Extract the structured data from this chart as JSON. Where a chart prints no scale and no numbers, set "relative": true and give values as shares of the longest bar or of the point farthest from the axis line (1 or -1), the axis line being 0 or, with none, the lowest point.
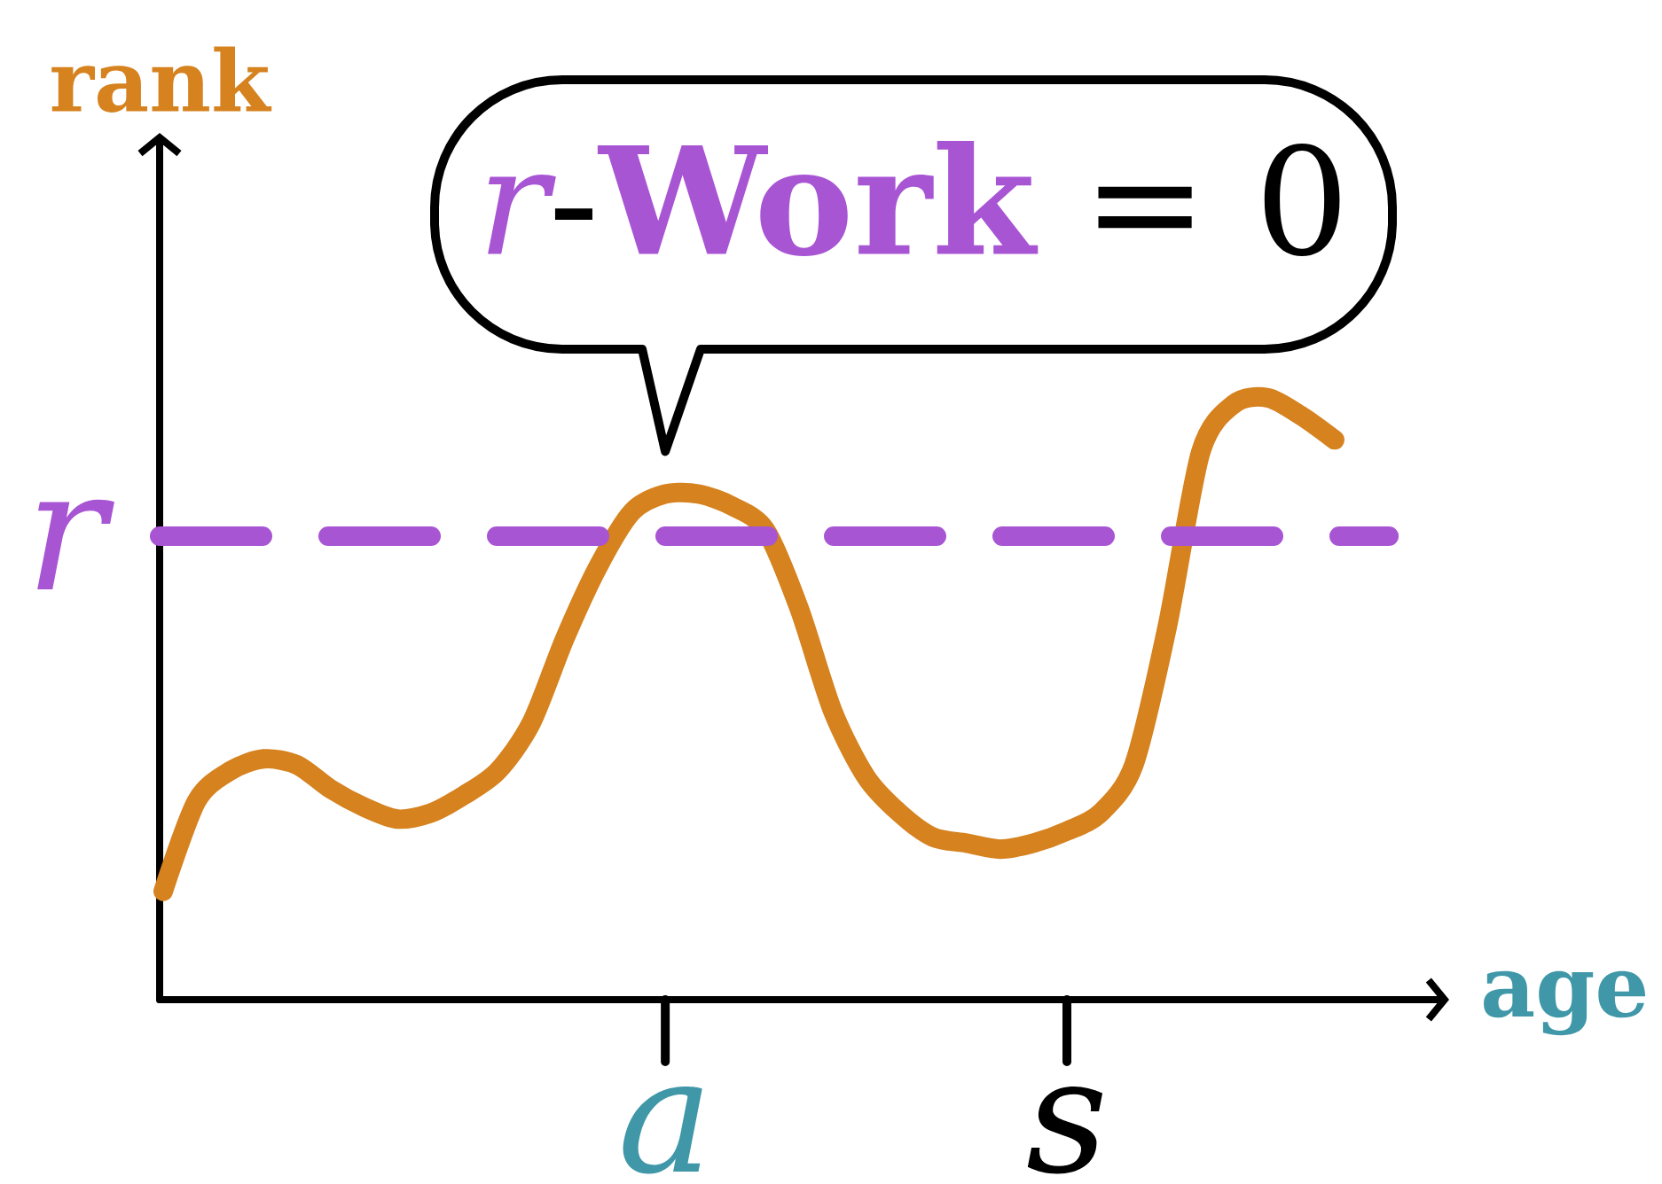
{
  "chart_data": {
    "type": "line",
    "xlabel": "age",
    "ylabel": "rank",
    "relative": true,
    "annotations": [
      {
        "text": "*r*-**Work** = 0",
        "x": "a",
        "y": 0.84
      }
    ],
    "categories": [
      null,
      null,
      null,
      null,
      null,
      null,
      null,
      null,
      null,
      null,
      null,
      null,
      null,
      null,
      null,
      "a",
      null,
      null,
      null,
      null,
      null,
      null,
      null,
      null,
      null,
      null,
      null,
      "s",
      null,
      null,
      null,
      null,
      null,
      null,
      null,
      null
    ],
    "series": [
      {
        "color": "#d5821f",
        "values": [
          0.18,
          0.33,
          0.38,
          0.4,
          0.39,
          0.35,
          0.32,
          0.3,
          0.31,
          0.34,
          0.38,
          0.46,
          0.6,
          0.72,
          0.81,
          0.84,
          0.84,
          0.82,
          0.78,
          0.65,
          0.48,
          0.37,
          0.31,
          0.27,
          0.26,
          0.25,
          0.26,
          0.28,
          0.31,
          0.39,
          0.62,
          0.91,
          0.99,
          1,
          0.97,
          0.93
        ]
      }
    ],
    "ref_lines": [
      {
        "axis": "y",
        "value": 0.77,
        "label": "r",
        "color": "#a855d4",
        "line_style": "dashed"
      }
    ]
  }
}
